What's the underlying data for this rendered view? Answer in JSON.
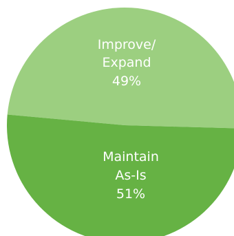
{
  "chart_data": {
    "type": "pie",
    "slices": [
      {
        "label_lines": [
          "Improve/",
          "Expand"
        ],
        "percent_label": "49%",
        "value": 49,
        "color": "#9ccf80"
      },
      {
        "label_lines": [
          "Maintain",
          "As-Is"
        ],
        "percent_label": "51%",
        "value": 51,
        "color": "#66b244"
      }
    ],
    "legend": "none"
  }
}
